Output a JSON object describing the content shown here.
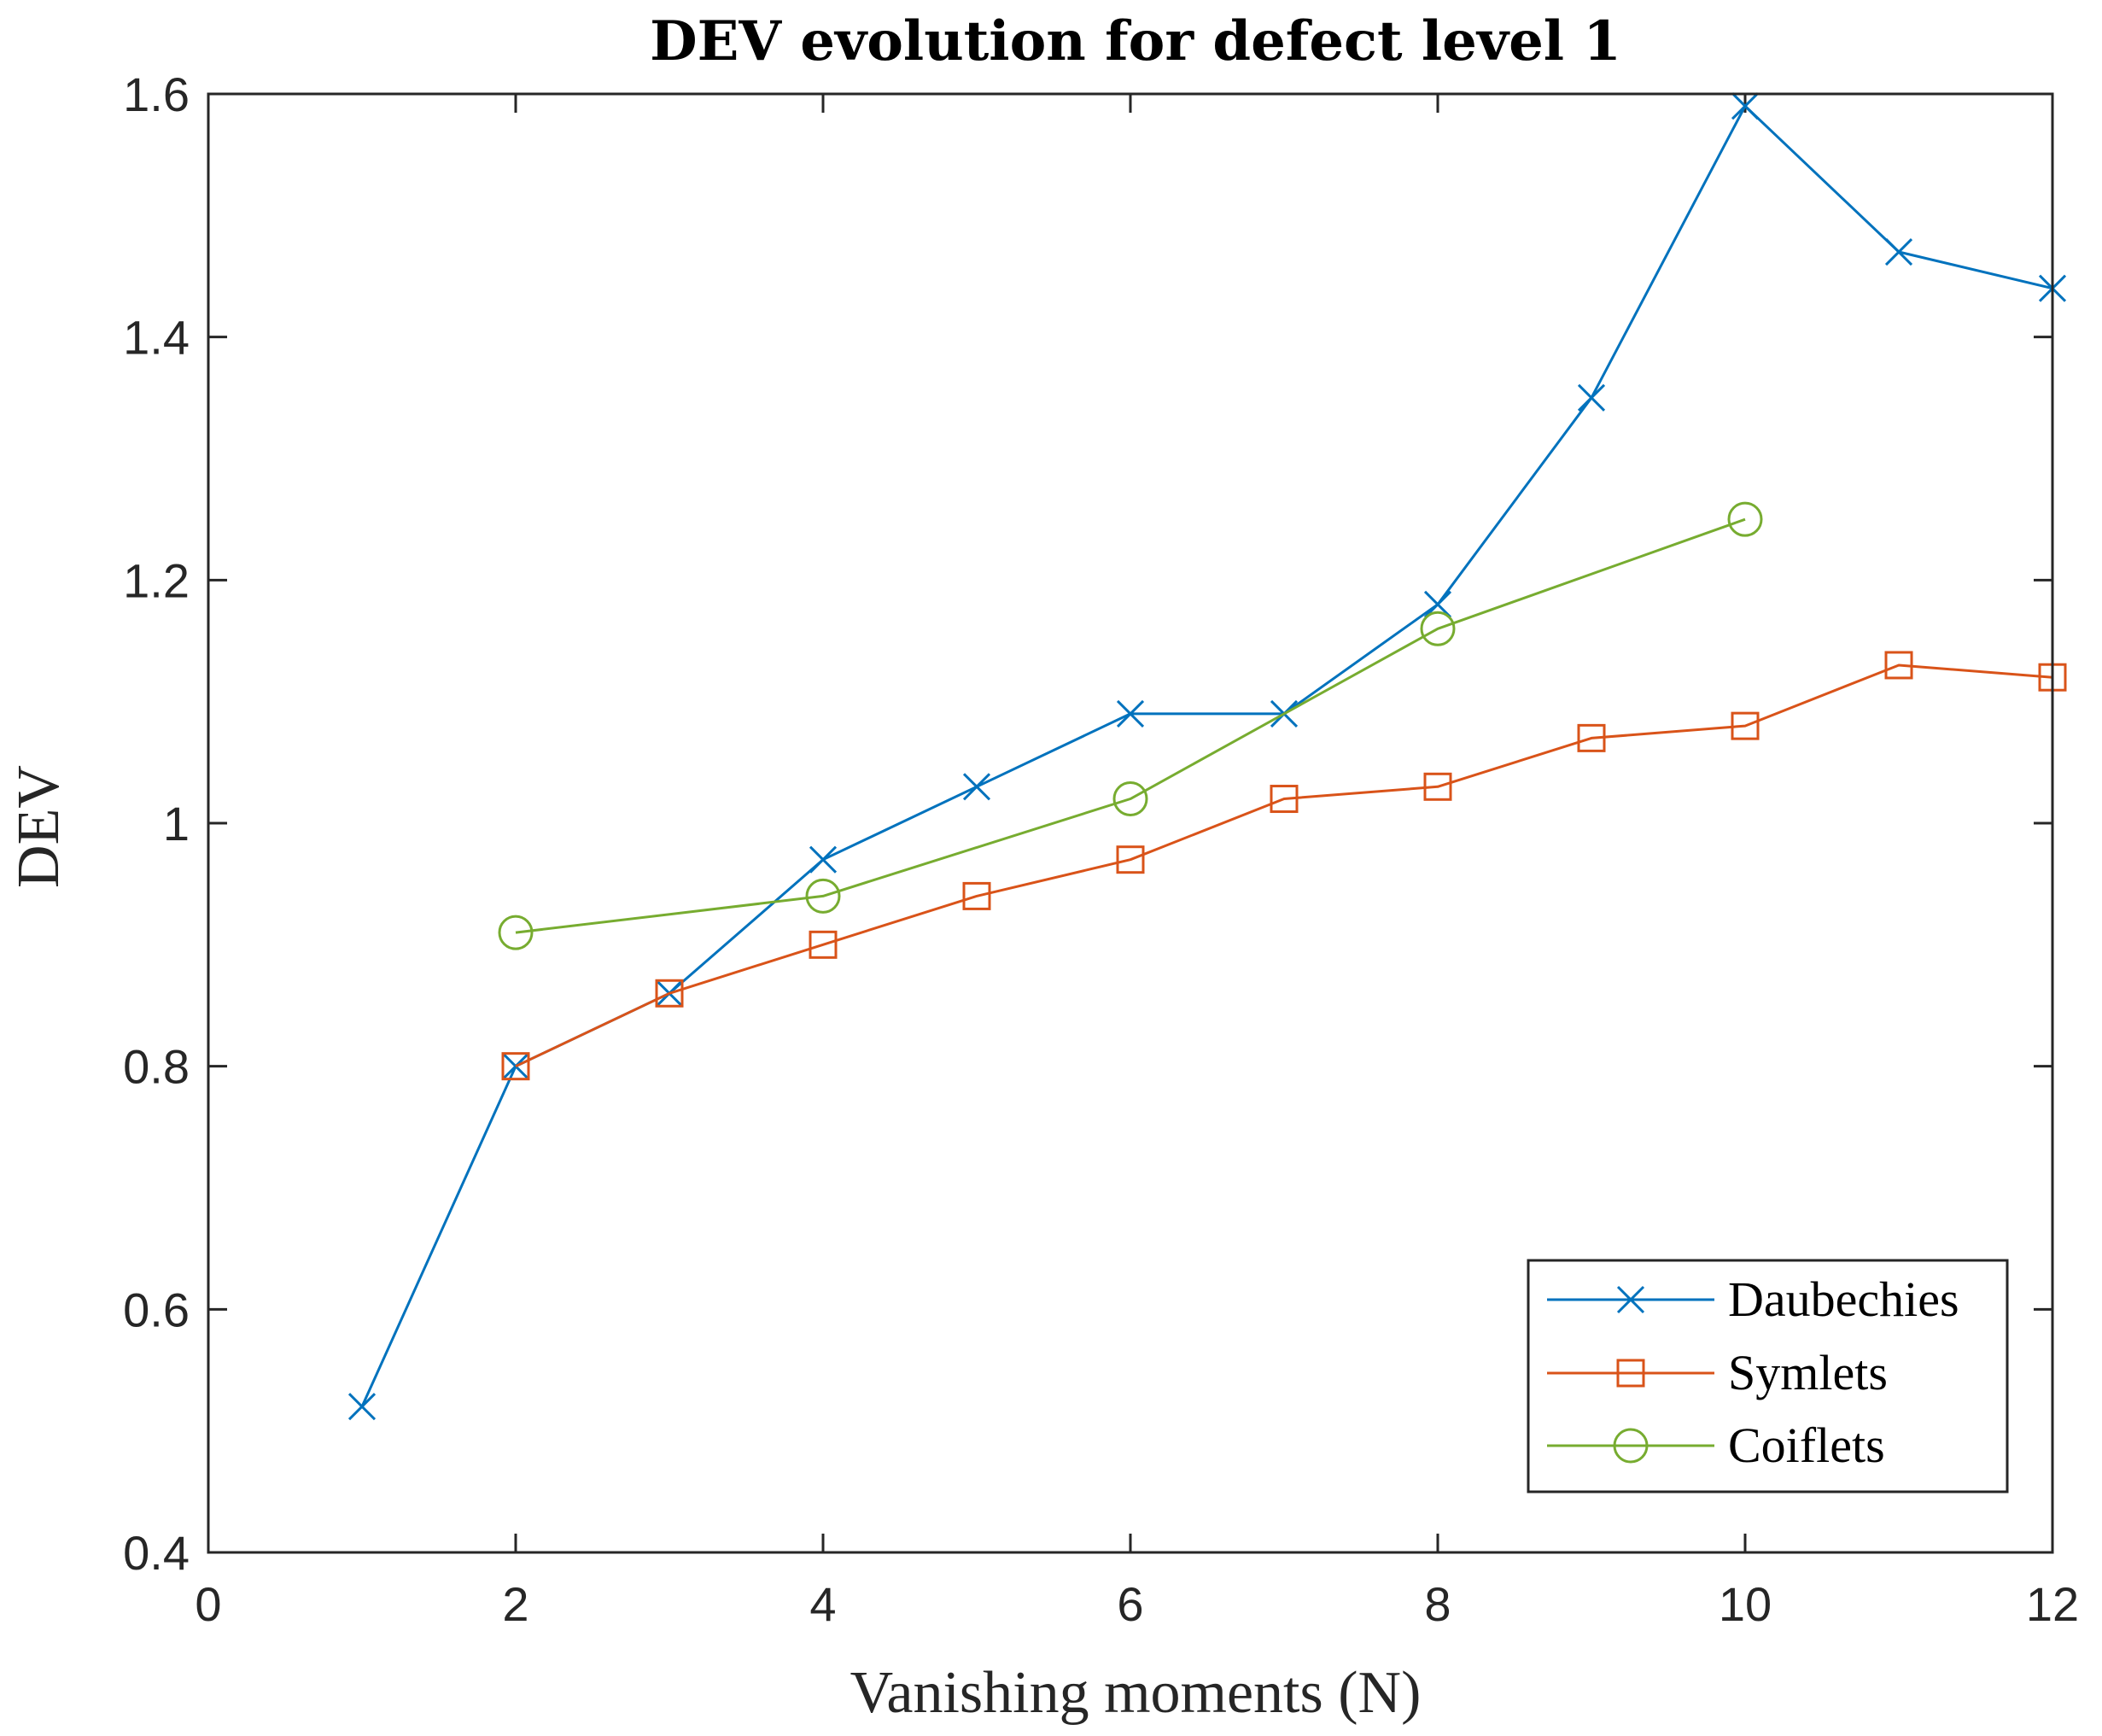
{
  "chart_data": {
    "type": "line",
    "title": "DEV evolution for defect level 1",
    "xlabel": "Vanishing moments (N)",
    "ylabel": "DEV",
    "xlim": [
      0,
      12
    ],
    "ylim": [
      0.4,
      1.6
    ],
    "xticks": [
      0,
      2,
      4,
      6,
      8,
      10,
      12
    ],
    "xtick_labels": [
      "0",
      "2",
      "4",
      "6",
      "8",
      "10",
      "12"
    ],
    "yticks": [
      0.4,
      0.6,
      0.8,
      1.0,
      1.2,
      1.4,
      1.6
    ],
    "ytick_labels": [
      "0.4",
      "0.6",
      "0.8",
      "1",
      "1.2",
      "1.4",
      "1.6"
    ],
    "grid": false,
    "legend_position": "bottom-right",
    "series": [
      {
        "name": "Daubechies",
        "color": "#0072BD",
        "marker": "x",
        "x": [
          1,
          2,
          3,
          4,
          5,
          6,
          7,
          8,
          9,
          10,
          11,
          12
        ],
        "y": [
          0.52,
          0.8,
          0.86,
          0.97,
          1.03,
          1.09,
          1.09,
          1.18,
          1.35,
          1.59,
          1.47,
          1.44
        ]
      },
      {
        "name": "Symlets",
        "color": "#D95319",
        "marker": "square",
        "x": [
          2,
          3,
          4,
          5,
          6,
          7,
          8,
          9,
          10,
          11,
          12
        ],
        "y": [
          0.8,
          0.86,
          0.9,
          0.94,
          0.97,
          1.02,
          1.03,
          1.07,
          1.08,
          1.13,
          1.12
        ]
      },
      {
        "name": "Coiflets",
        "color": "#77AC30",
        "marker": "circle",
        "x": [
          2,
          4,
          6,
          8,
          10
        ],
        "y": [
          0.91,
          0.94,
          1.02,
          1.16,
          1.25
        ]
      }
    ]
  }
}
